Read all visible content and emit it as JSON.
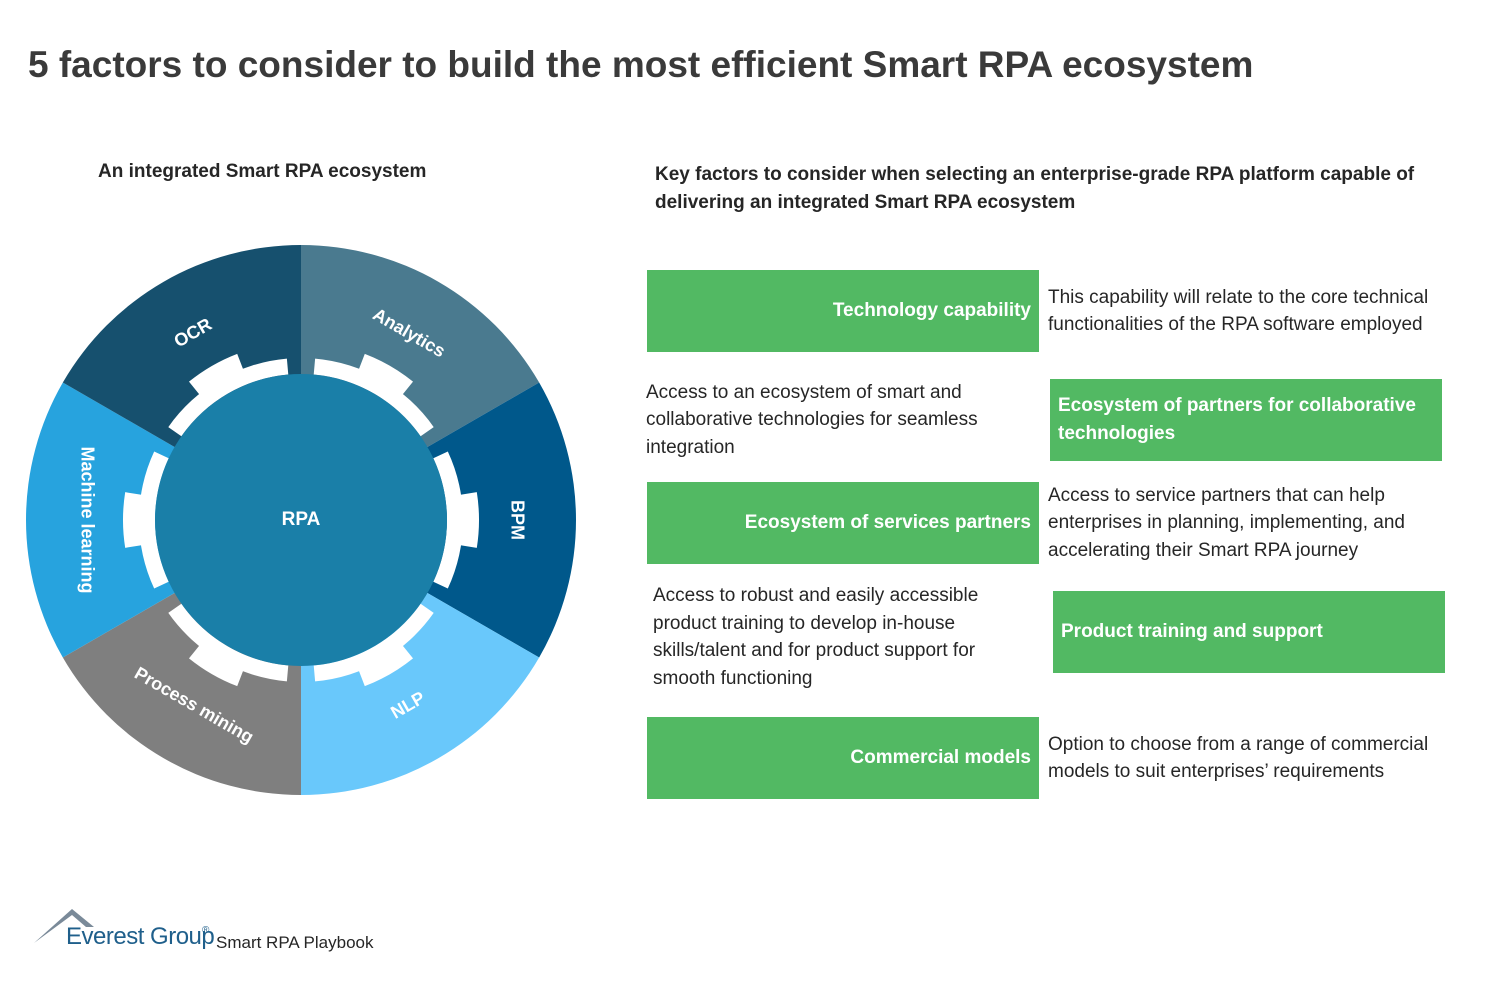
{
  "title": "5 factors to consider to build the most efficient Smart RPA ecosystem",
  "left": {
    "heading": "An integrated Smart RPA ecosystem",
    "center": "RPA",
    "center_color": "#1a7fa8",
    "segments": [
      {
        "label": "Analytics",
        "color": "#4a7a8f"
      },
      {
        "label": "BPM",
        "color": "#00588b"
      },
      {
        "label": "NLP",
        "color": "#69c8fb"
      },
      {
        "label": "Process mining",
        "color": "#7f7f7f"
      },
      {
        "label": "Machine learning",
        "color": "#27a3de"
      },
      {
        "label": "OCR",
        "color": "#16506e"
      }
    ]
  },
  "right": {
    "heading": "Key factors to consider when selecting an enterprise-grade RPA platform capable of delivering an integrated Smart RPA ecosystem",
    "factors": [
      {
        "name": "Technology capability",
        "description": "This capability will relate to the core technical functionalities of the RPA software employed"
      },
      {
        "name": "Ecosystem of partners for collaborative technologies",
        "description": "Access to an ecosystem of smart and collaborative technologies for seamless integration"
      },
      {
        "name": "Ecosystem of services partners",
        "description": "Access to service partners that can help enterprises in planning, implementing, and accelerating their Smart RPA journey"
      },
      {
        "name": "Product training and support",
        "description": "Access to robust and easily accessible product training to develop in-house skills/talent and for product support for smooth functioning"
      },
      {
        "name": "Commercial models",
        "description": "Option to choose from a range of commercial models to suit enterprises’ requirements"
      }
    ]
  },
  "footer": {
    "brand": "Everest Group",
    "mark": "®",
    "product": "Smart RPA Playbook"
  }
}
